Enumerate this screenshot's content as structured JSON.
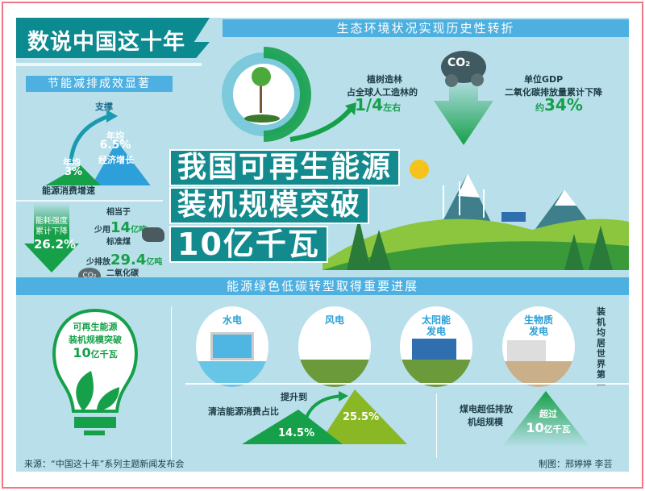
{
  "title": "数说中国这十年",
  "eco_header": "生态环境状况实现历史性转折",
  "energy_saving": {
    "header": "节能减排成效显著",
    "support": "支撑",
    "energy_avg": "年均",
    "energy_val": "3%",
    "energy_label": "能源消费增速",
    "econ_avg": "年均",
    "econ_val": "6.5%",
    "econ_label": "经济增长",
    "intensity_l1": "能耗强度",
    "intensity_l2": "累计下降",
    "intensity_val": "26.2%",
    "equiv": "相当于",
    "coal_pre": "少用",
    "coal_val": "14",
    "coal_unit": "亿吨",
    "coal_label": "标准煤",
    "co2_pre": "少排放",
    "co2_val": "29.4",
    "co2_unit": "亿吨",
    "co2_label": "二氧化碳",
    "co2_icon": "CO₂"
  },
  "forest": {
    "l1": "植树造林",
    "l2": "占全球人工造林的",
    "val": "1/4",
    "suffix": "左右"
  },
  "gdp": {
    "co2_icon": "CO₂",
    "l1": "单位GDP",
    "l2": "二氧化碳排放量累计下降",
    "pre": "约",
    "val": "34%"
  },
  "headline": [
    "我国可再生能源",
    "装机规模突破",
    "10亿千瓦"
  ],
  "transition": {
    "header": "能源绿色低碳转型取得重要进展",
    "bulb": {
      "l1": "可再生能源",
      "l2": "装机规模突破",
      "val": "10",
      "unit": "亿千瓦"
    },
    "types": [
      "水电",
      "风电",
      "太阳能\n发电",
      "生物质\n发电"
    ],
    "world_first": "装机均居世界第一",
    "clean": {
      "label": "清洁能源消费占比",
      "up": "提升到",
      "from": "14.5%",
      "to": "25.5%"
    },
    "coal": {
      "l1": "煤电超低排放",
      "l2": "机组规模",
      "pre": "超过",
      "val": "10",
      "unit": "亿千瓦"
    }
  },
  "source": "来源：“中国这十年”系列主题新闻发布会",
  "credit": "制图：邢婷婷  李芸",
  "colors": {
    "teal": "#0b8a8f",
    "blue": "#4db0e0",
    "green": "#16a04a",
    "panel": "#b9e0ea",
    "frame": "#f07880"
  }
}
